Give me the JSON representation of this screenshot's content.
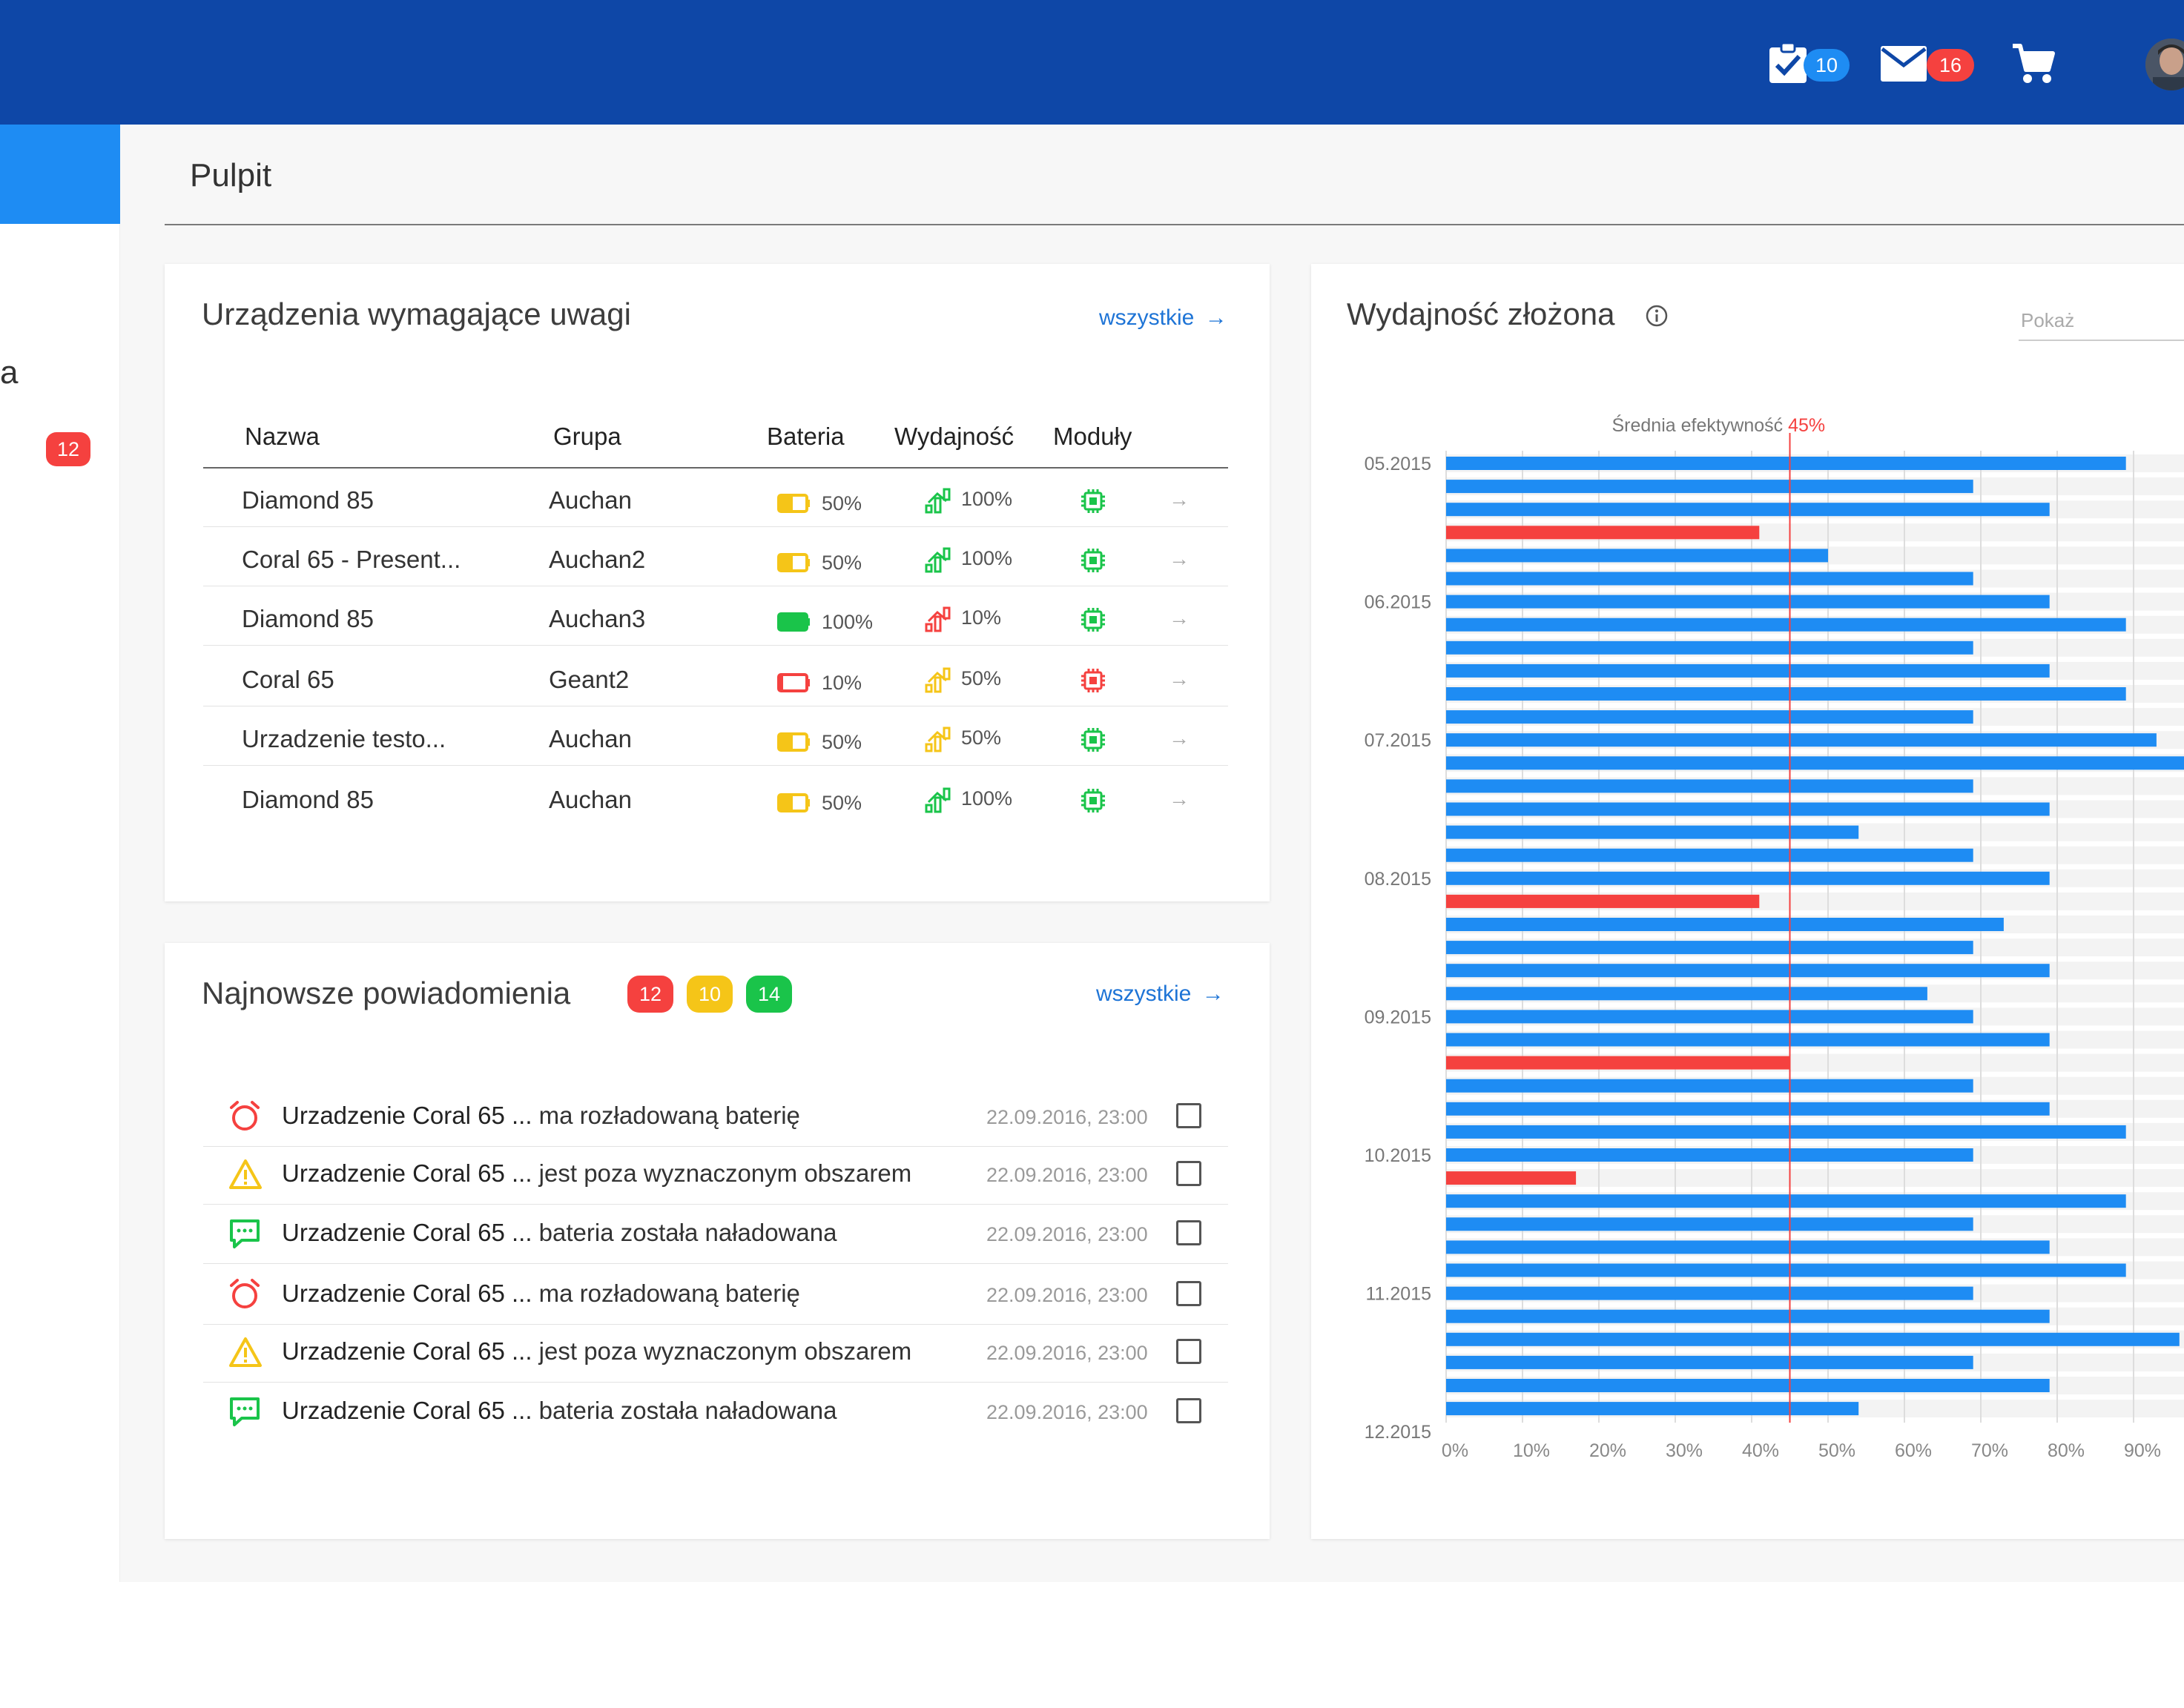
{
  "header": {
    "tasks_count": "10",
    "mail_count": "16",
    "icons": [
      "tasks-icon",
      "mail-icon",
      "cart-icon",
      "avatar"
    ]
  },
  "sidebar": {
    "partial_label": "a",
    "badge_count": "12"
  },
  "page": {
    "title": "Pulpit"
  },
  "devices_card": {
    "title": "Urządzenia wymagające uwagi",
    "link": "wszystkie",
    "columns": [
      "Nazwa",
      "Grupa",
      "Bateria",
      "Wydajność",
      "Moduły"
    ],
    "rows": [
      {
        "name": "Diamond 85",
        "group": "Auchan",
        "battery": "50%",
        "battery_level": 0.5,
        "battery_status": "warning",
        "performance": "100%",
        "performance_status": "good",
        "module_status": "good"
      },
      {
        "name": "Coral 65 - Present...",
        "group": "Auchan2",
        "battery": "50%",
        "battery_level": 0.5,
        "battery_status": "warning",
        "performance": "100%",
        "performance_status": "good",
        "module_status": "good"
      },
      {
        "name": "Diamond 85",
        "group": "Auchan3",
        "battery": "100%",
        "battery_level": 1.0,
        "battery_status": "good",
        "performance": "10%",
        "performance_status": "bad",
        "module_status": "good"
      },
      {
        "name": "Coral 65",
        "group": "Geant2",
        "battery": "10%",
        "battery_level": 0.1,
        "battery_status": "bad",
        "performance": "50%",
        "performance_status": "warning",
        "module_status": "bad"
      },
      {
        "name": "Urzadzenie testo...",
        "group": "Auchan",
        "battery": "50%",
        "battery_level": 0.5,
        "battery_status": "warning",
        "performance": "50%",
        "performance_status": "warning",
        "module_status": "good"
      },
      {
        "name": "Diamond 85",
        "group": "Auchan",
        "battery": "50%",
        "battery_level": 0.5,
        "battery_status": "warning",
        "performance": "100%",
        "performance_status": "good",
        "module_status": "good"
      }
    ]
  },
  "notifications_card": {
    "title": "Najnowsze powiadomienia",
    "badges": [
      "12",
      "10",
      "14"
    ],
    "link": "wszystkie",
    "items": [
      {
        "type": "alarm",
        "device": "Urzadzenie Coral 65 ...",
        "message": "ma rozładowaną baterię",
        "date": "22.09.2016, 23:00"
      },
      {
        "type": "warning",
        "device": "Urzadzenie Coral 65 ...",
        "message": "jest poza wyznaczonym obszarem",
        "date": "22.09.2016, 23:00"
      },
      {
        "type": "message",
        "device": "Urzadzenie Coral 65 ...",
        "message": "bateria została naładowana",
        "date": "22.09.2016, 23:00"
      },
      {
        "type": "alarm",
        "device": "Urzadzenie Coral 65 ...",
        "message": "ma rozładowaną baterię",
        "date": "22.09.2016, 23:00"
      },
      {
        "type": "warning",
        "device": "Urzadzenie Coral 65 ...",
        "message": "jest poza wyznaczonym obszarem",
        "date": "22.09.2016, 23:00"
      },
      {
        "type": "message",
        "device": "Urzadzenie Coral 65 ...",
        "message": "bateria została naładowana",
        "date": "22.09.2016, 23:00"
      }
    ]
  },
  "performance_card": {
    "title": "Wydajność złożona",
    "filter_placeholder": "Pokaż"
  },
  "colors": {
    "header": "#0e47a7",
    "accent_blue": "#1e8cf3",
    "bar_blue": "#1e8cf3",
    "bar_red": "#f5413f",
    "good": "#1ac44a",
    "warning": "#f5c518",
    "bad": "#f5413f"
  },
  "chart_data": {
    "type": "bar",
    "orientation": "horizontal",
    "average_label": "Średnia efektywność",
    "average_value_label": "45%",
    "average": 45,
    "xlim": [
      0,
      100
    ],
    "x_ticks": [
      "0%",
      "10%",
      "20%",
      "30%",
      "40%",
      "50%",
      "60%",
      "70%",
      "80%",
      "90%"
    ],
    "y_labels": [
      {
        "label": "05.2015",
        "index": 0
      },
      {
        "label": "06.2015",
        "index": 6
      },
      {
        "label": "07.2015",
        "index": 12
      },
      {
        "label": "08.2015",
        "index": 18
      },
      {
        "label": "09.2015",
        "index": 24
      },
      {
        "label": "10.2015",
        "index": 30
      },
      {
        "label": "11.2015",
        "index": 36
      },
      {
        "label": "12.2015",
        "index": 42
      }
    ],
    "values": [
      89,
      69,
      79,
      41,
      50,
      69,
      79,
      89,
      69,
      79,
      89,
      69,
      93,
      98,
      69,
      79,
      54,
      69,
      79,
      41,
      73,
      69,
      79,
      63,
      69,
      79,
      45,
      69,
      79,
      89,
      69,
      17,
      89,
      69,
      79,
      89,
      69,
      79,
      96,
      69,
      79,
      54
    ],
    "below_average": [
      false,
      false,
      false,
      true,
      false,
      false,
      false,
      false,
      false,
      false,
      false,
      false,
      false,
      false,
      false,
      false,
      false,
      false,
      false,
      true,
      false,
      false,
      false,
      false,
      false,
      false,
      true,
      false,
      false,
      false,
      false,
      true,
      false,
      false,
      false,
      false,
      false,
      false,
      false,
      false,
      false,
      false
    ]
  }
}
